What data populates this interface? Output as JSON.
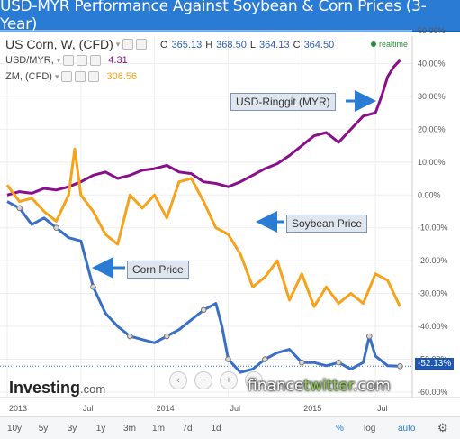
{
  "title": "USD-MYR Performance Against Soybean & Corn Prices (3-Year)",
  "legend": {
    "main": {
      "name": "US Corn, W, (CFD)"
    },
    "items": [
      {
        "name": "USD/MYR,",
        "value": "4.31",
        "color": "#8a0f8a"
      },
      {
        "name": "ZM, (CFD)",
        "value": "306.56",
        "color": "#f7a21b"
      }
    ]
  },
  "ohlc": {
    "o_label": "O",
    "o": "365.13",
    "h_label": "H",
    "h": "368.50",
    "l_label": "L",
    "l": "364.13",
    "c_label": "C",
    "c": "364.50"
  },
  "realtime": "realtime",
  "annotations": {
    "myr": "USD-Ringgit (MYR)",
    "soy": "Soybean Price",
    "corn": "Corn Price"
  },
  "last_value_label": "-52.13%",
  "logo": {
    "name": "Investing",
    "suffix": ".com"
  },
  "watermark": {
    "a": "finance",
    "b": "twitter",
    "c": ".com"
  },
  "nav_controls": [
    "‹",
    "−",
    "+",
    "›"
  ],
  "ranges": [
    "10y",
    "5y",
    "3y",
    "1y",
    "3m",
    "1m",
    "7d",
    "1d"
  ],
  "options": {
    "percent": "%",
    "log": "log",
    "auto": "auto"
  },
  "colors": {
    "myr": "#8a0f8a",
    "soy": "#f7a21b",
    "corn": "#3a6fc8",
    "accent": "#2a7bd3"
  },
  "chart_data": {
    "type": "line",
    "title": "USD-MYR Performance Against Soybean & Corn Prices (3-Year)",
    "ylim": [
      -60,
      50
    ],
    "yticks": [
      "50.00%",
      "40.00%",
      "30.00%",
      "20.00%",
      "10.00%",
      "0.00%",
      "-10.00%",
      "-20.00%",
      "-30.00%",
      "-40.00%",
      "-50.00%",
      "-60.00%"
    ],
    "ytick_values": [
      50,
      40,
      30,
      20,
      10,
      0,
      -10,
      -20,
      -30,
      -40,
      -50,
      -60
    ],
    "xticks": [
      "2013",
      "Jul",
      "2014",
      "Jul",
      "2015",
      "Jul"
    ],
    "xtick_values": [
      0,
      6,
      12,
      18,
      24,
      30
    ],
    "series": [
      {
        "name": "USD/MYR",
        "color": "#8a0f8a",
        "x": [
          0,
          1,
          2,
          3,
          4,
          5,
          6,
          7,
          8,
          9,
          10,
          11,
          12,
          13,
          14,
          15,
          16,
          17,
          18,
          19,
          20,
          21,
          22,
          23,
          24,
          25,
          26,
          27,
          28,
          29,
          30,
          30.5,
          31,
          31.5,
          32
        ],
        "y": [
          0,
          1,
          0.5,
          2,
          1.5,
          2.5,
          4,
          6,
          7,
          5,
          6,
          7.5,
          8,
          9,
          7,
          6.5,
          4,
          3.5,
          2.5,
          4,
          6,
          8,
          9.5,
          12,
          15,
          18,
          19,
          16,
          20,
          24,
          25,
          30,
          36,
          39,
          41
        ]
      },
      {
        "name": "ZM (Soybean)",
        "color": "#f7a21b",
        "x": [
          0,
          1,
          2,
          3,
          4,
          5,
          5.5,
          6,
          7,
          8,
          9,
          10,
          11,
          12,
          13,
          14,
          15,
          16,
          17,
          18,
          19,
          20,
          21,
          22,
          23,
          24,
          25,
          26,
          27,
          28,
          29,
          30,
          31,
          32
        ],
        "y": [
          3,
          -2,
          -1,
          -5,
          -8,
          0,
          14,
          0,
          -5,
          -12,
          -15,
          0,
          -4,
          0,
          -7,
          4,
          5,
          -2,
          -10,
          -12,
          -18,
          -28,
          -25,
          -20,
          -32,
          -24,
          -34,
          -28,
          -33,
          -30,
          -33,
          -24,
          -26,
          -34
        ]
      },
      {
        "name": "US Corn",
        "color": "#3a6fc8",
        "x": [
          0,
          1,
          2,
          3,
          4,
          5,
          6,
          7,
          8,
          9,
          10,
          11,
          12,
          13,
          14,
          15,
          16,
          17,
          17.5,
          18,
          19,
          20,
          21,
          22,
          23,
          24,
          25,
          26,
          27,
          28,
          29,
          29.5,
          30,
          31,
          32
        ],
        "y": [
          -2,
          -4,
          -9,
          -7,
          -10,
          -13,
          -14,
          -28,
          -36,
          -40,
          -43,
          -44,
          -45,
          -43,
          -41,
          -38,
          -35,
          -33,
          -40,
          -50,
          -54,
          -53,
          -50,
          -48,
          -47,
          -51,
          -51,
          -52,
          -51,
          -53,
          -51,
          -43,
          -49,
          -52,
          -52.13
        ]
      }
    ]
  }
}
